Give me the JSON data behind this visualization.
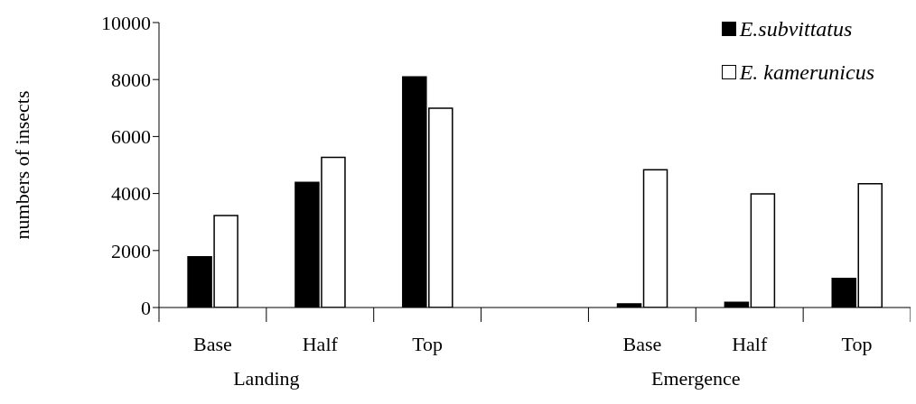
{
  "chart_data": {
    "type": "bar",
    "ylabel": "numbers of insects",
    "categories": [
      "Base",
      "Half",
      "Top",
      null,
      "Base",
      "Half",
      "Top"
    ],
    "series": [
      {
        "name": "E.subvittatus",
        "color": "#000000",
        "values": [
          1780,
          4390,
          8090,
          null,
          130,
          180,
          1020
        ]
      },
      {
        "name": "E. kamerunicus",
        "color": "#ffffff",
        "values": [
          3230,
          5270,
          6990,
          null,
          4830,
          3990,
          4340
        ]
      }
    ],
    "ylim": [
      0,
      10000
    ],
    "yticks": [
      0,
      2000,
      4000,
      6000,
      8000,
      10000
    ],
    "legend": "top right",
    "annotations": [
      "Landing",
      "Emergence"
    ]
  }
}
